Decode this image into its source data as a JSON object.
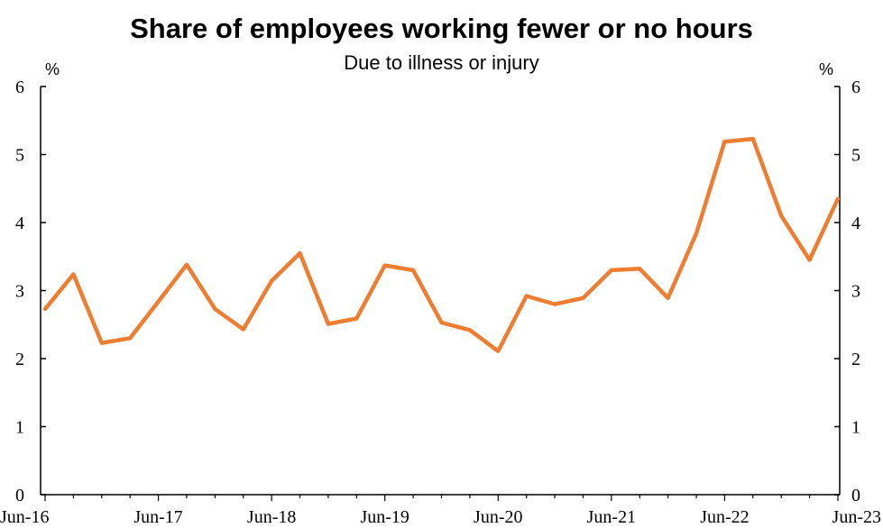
{
  "chart_data": {
    "type": "line",
    "title": "Share of employees working fewer or no hours",
    "subtitle": "Due to illness or injury",
    "ylabel_left": "%",
    "ylabel_right": "%",
    "ylim": [
      0,
      6
    ],
    "yticks": [
      0,
      1,
      2,
      3,
      4,
      5,
      6
    ],
    "xticks": [
      "Jun-16",
      "Jun-17",
      "Jun-18",
      "Jun-19",
      "Jun-20",
      "Jun-21",
      "Jun-22",
      "Jun-23"
    ],
    "grid": false,
    "colors": {
      "line": "#ED7D31"
    },
    "series": [
      {
        "x": [
          "Jun-16",
          "Sep-16",
          "Dec-16",
          "Mar-17",
          "Jun-17",
          "Sep-17",
          "Dec-17",
          "Mar-18",
          "Jun-18",
          "Sep-18",
          "Dec-18",
          "Mar-19",
          "Jun-19",
          "Sep-19",
          "Dec-19",
          "Mar-20",
          "Jun-20",
          "Sep-20",
          "Dec-20",
          "Mar-21",
          "Jun-21",
          "Sep-21",
          "Dec-21",
          "Mar-22",
          "Jun-22",
          "Sep-22",
          "Dec-22",
          "Mar-23",
          "Jun-23"
        ],
        "values": [
          2.73,
          3.24,
          2.23,
          2.3,
          2.84,
          3.38,
          2.73,
          2.43,
          3.14,
          3.55,
          2.51,
          2.59,
          3.37,
          3.3,
          2.53,
          2.42,
          2.11,
          2.92,
          2.8,
          2.89,
          3.3,
          3.32,
          2.89,
          3.84,
          5.19,
          5.23,
          4.1,
          3.45,
          4.35
        ]
      }
    ]
  }
}
